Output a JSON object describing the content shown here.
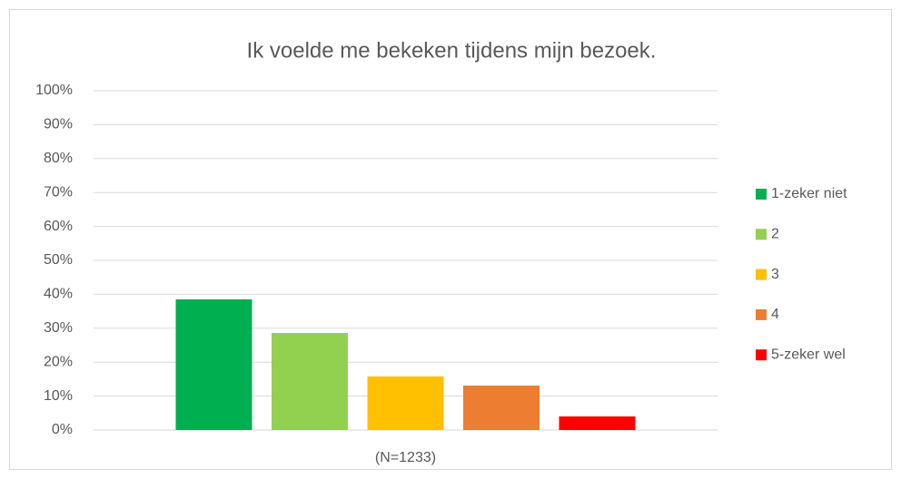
{
  "chart_data": {
    "type": "bar",
    "title": "Ik voelde me bekeken tijdens mijn bezoek.",
    "categories": [
      "(N=1233)"
    ],
    "series": [
      {
        "name": "1-zeker niet",
        "color": "#00b050",
        "values": [
          38.5
        ]
      },
      {
        "name": "2",
        "color": "#92d050",
        "values": [
          28.6
        ]
      },
      {
        "name": "3",
        "color": "#ffc000",
        "values": [
          15.8
        ]
      },
      {
        "name": "4",
        "color": "#ed7d31",
        "values": [
          13.1
        ]
      },
      {
        "name": "5-zeker wel",
        "color": "#ff0000",
        "values": [
          4.0
        ]
      }
    ],
    "ylim": [
      0,
      100
    ],
    "yticks": [
      {
        "value": 0,
        "label": "0%"
      },
      {
        "value": 10,
        "label": "10%"
      },
      {
        "value": 20,
        "label": "20%"
      },
      {
        "value": 30,
        "label": "30%"
      },
      {
        "value": 40,
        "label": "40%"
      },
      {
        "value": 50,
        "label": "50%"
      },
      {
        "value": 60,
        "label": "60%"
      },
      {
        "value": 70,
        "label": "70%"
      },
      {
        "value": 80,
        "label": "80%"
      },
      {
        "value": 90,
        "label": "90%"
      },
      {
        "value": 100,
        "label": "100%"
      }
    ],
    "grid": true,
    "legend": "right"
  }
}
